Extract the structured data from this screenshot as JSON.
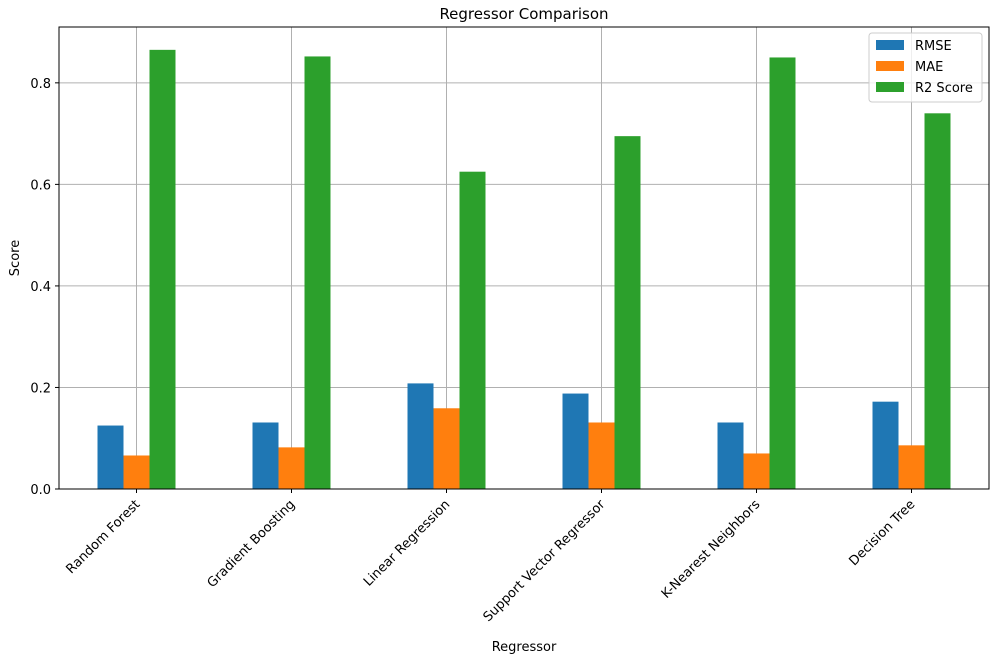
{
  "chart_data": {
    "type": "bar",
    "title": "Regressor Comparison",
    "xlabel": "Regressor",
    "ylabel": "Score",
    "categories": [
      "Random Forest",
      "Gradient Boosting",
      "Linear Regression",
      "Support Vector Regressor",
      "K-Nearest Neighbors",
      "Decision Tree"
    ],
    "series": [
      {
        "name": "RMSE",
        "color": "#1f77b4",
        "values": [
          0.125,
          0.131,
          0.208,
          0.188,
          0.131,
          0.172
        ]
      },
      {
        "name": "MAE",
        "color": "#ff7f0e",
        "values": [
          0.066,
          0.082,
          0.159,
          0.131,
          0.07,
          0.086
        ]
      },
      {
        "name": "R2 Score",
        "color": "#2ca02c",
        "values": [
          0.865,
          0.852,
          0.625,
          0.695,
          0.85,
          0.74
        ]
      }
    ],
    "ylim": [
      0,
      0.91
    ],
    "yticks": [
      0.0,
      0.2,
      0.4,
      0.6,
      0.8
    ],
    "ytick_labels": [
      "0.0",
      "0.2",
      "0.4",
      "0.6",
      "0.8"
    ],
    "grid": true,
    "legend_position": "top-right"
  }
}
